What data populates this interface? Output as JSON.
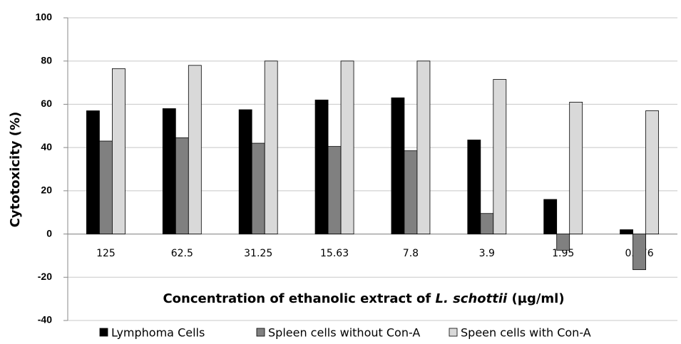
{
  "chart_data": {
    "type": "bar",
    "categories": [
      "125",
      "62.5",
      "31.25",
      "15.63",
      "7.8",
      "3.9",
      "1.95",
      "0.976"
    ],
    "series": [
      {
        "name": "Lymphoma Cells",
        "color": "#000000",
        "values": [
          57,
          58,
          57.5,
          62,
          63,
          43.5,
          16,
          2
        ]
      },
      {
        "name": "Spleen cells without Con-A",
        "color": "#808080",
        "values": [
          43,
          44.5,
          42,
          40.5,
          38.5,
          9.5,
          -7.5,
          -16.5
        ]
      },
      {
        "name": "Speen cells with Con-A",
        "color": "#d9d9d9",
        "values": [
          76.5,
          78,
          80,
          80,
          80,
          71.5,
          61,
          57
        ]
      }
    ],
    "y_label": "Cytotoxicity (%)",
    "x_label": [
      "Concentration  of ethanolic extract of ",
      "L. schottii",
      " (µg/ml)"
    ],
    "ylim": [
      -40,
      100
    ],
    "yticks": [
      -40,
      -20,
      0,
      20,
      40,
      60,
      80,
      100
    ],
    "grid": true,
    "legend": "bottom"
  }
}
